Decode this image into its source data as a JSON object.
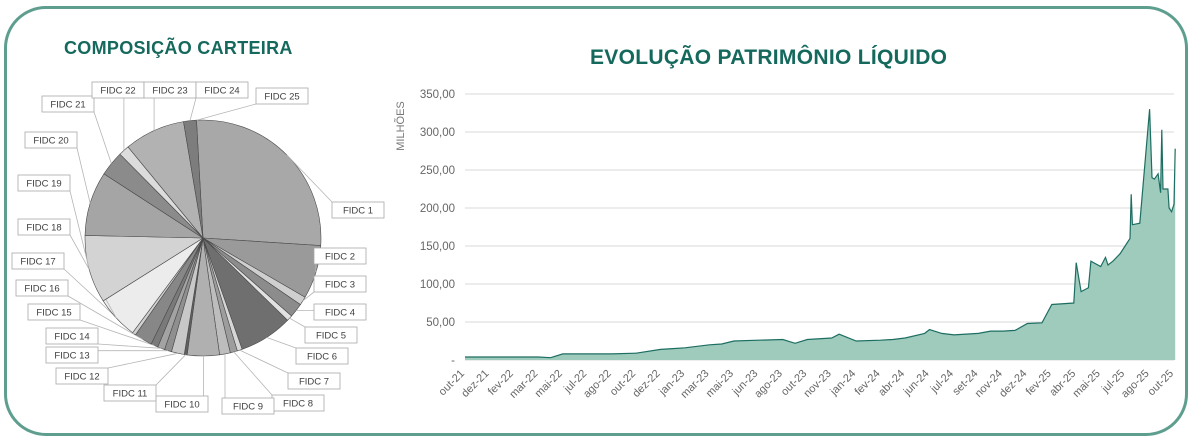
{
  "colors": {
    "border": "#5e9e8e",
    "title": "#15695c",
    "area_fill": "#9fcbbd",
    "area_line": "#1d6e62",
    "grid": "#d9d9d9"
  },
  "chart_data": [
    {
      "type": "pie",
      "title": "COMPOSIÇÃO CARTEIRA",
      "categories": [
        "FIDC 1",
        "FIDC 2",
        "FIDC 3",
        "FIDC 4",
        "FIDC 5",
        "FIDC 6",
        "FIDC 7",
        "FIDC 8",
        "FIDC 9",
        "FIDC 10",
        "FIDC 11",
        "FIDC 12",
        "FIDC 13",
        "FIDC 14",
        "FIDC 15",
        "FIDC 16",
        "FIDC 17",
        "FIDC 18",
        "FIDC 19",
        "FIDC 20",
        "FIDC 21",
        "FIDC 22",
        "FIDC 23",
        "FIDC 24",
        "FIDC 25"
      ],
      "values": [
        27.5,
        7.5,
        1.2,
        2.0,
        0.8,
        7.5,
        0.7,
        1.0,
        1.5,
        4.5,
        0.4,
        1.8,
        1.0,
        1.0,
        1.0,
        2.5,
        0.5,
        6.0,
        9.5,
        9.0,
        3.5,
        1.5,
        8.5,
        1.8,
        0.0
      ],
      "legend": "callout-labels"
    },
    {
      "type": "area",
      "title": "EVOLUÇÃO PATRIMÔNIO LÍQUIDO",
      "ylabel": "MILHÕES",
      "xlabel": "",
      "ylim": [
        0,
        350
      ],
      "yticks": [
        "-",
        "50,00",
        "100,00",
        "150,00",
        "200,00",
        "250,00",
        "300,00",
        "350,00"
      ],
      "ytick_values": [
        0,
        50,
        100,
        150,
        200,
        250,
        300,
        350
      ],
      "categories": [
        "out-21",
        "dez-21",
        "fev-22",
        "mar-22",
        "mai-22",
        "jul-22",
        "ago-22",
        "out-22",
        "dez-22",
        "jan-23",
        "mar-23",
        "mai-23",
        "jun-23",
        "ago-23",
        "out-23",
        "nov-23",
        "jan-24",
        "fev-24",
        "abr-24",
        "jun-24",
        "jul-24",
        "set-24",
        "nov-24",
        "dez-24",
        "fev-25",
        "abr-25",
        "mai-25",
        "jul-25",
        "ago-25",
        "out-25"
      ],
      "x_range": [
        0,
        29
      ],
      "x": [
        0,
        1,
        2,
        3,
        3.5,
        4,
        5,
        6,
        7,
        8,
        8.5,
        9,
        10,
        10.5,
        11,
        12,
        13,
        13.5,
        14,
        15,
        15.3,
        16,
        17,
        17.5,
        18,
        18.8,
        19,
        19.5,
        20,
        21,
        21.5,
        22,
        22.5,
        23,
        23.6,
        24,
        24.9,
        25,
        25.2,
        25.5,
        25.6,
        26,
        26.2,
        26.3,
        26.5,
        26.8,
        27,
        27.2,
        27.25,
        27.3,
        27.6,
        28,
        28.1,
        28.2,
        28.35,
        28.45,
        28.5,
        28.55,
        28.75,
        28.8,
        28.9,
        29,
        29.05
      ],
      "y": [
        4,
        4,
        4,
        4,
        3,
        8,
        8,
        8,
        9,
        14,
        15,
        16,
        20,
        21,
        25,
        26,
        27,
        22,
        27,
        29,
        34,
        25,
        26,
        27,
        29,
        35,
        40,
        35,
        33,
        35,
        38,
        38,
        39,
        48,
        49,
        73,
        75,
        128,
        90,
        95,
        130,
        123,
        135,
        125,
        130,
        140,
        150,
        160,
        218,
        178,
        180,
        330,
        240,
        238,
        245,
        220,
        303,
        225,
        225,
        200,
        195,
        205,
        278
      ]
    }
  ]
}
